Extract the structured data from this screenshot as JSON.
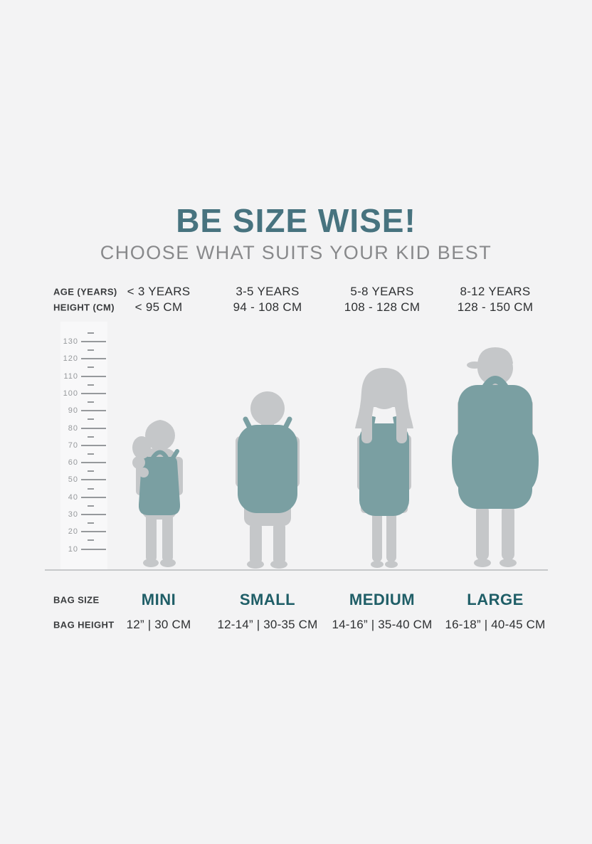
{
  "page": {
    "title": "BE SIZE WISE!",
    "subtitle": "CHOOSE WHAT SUITS YOUR KID BEST"
  },
  "colors": {
    "background": "#f3f3f4",
    "title_teal": "#47737f",
    "bag_label_teal": "#1f5e67",
    "backpack_teal": "#7a9fa2",
    "silhouette_gray": "#c5c7c9",
    "text_dark": "#2e3032",
    "muted_gray": "#88898b"
  },
  "size_table": {
    "age_label": "AGE (YEARS)",
    "height_label": "HEIGHT (CM)",
    "bag_size_label": "BAG SIZE",
    "bag_height_label": "BAG HEIGHT",
    "columns": [
      {
        "age": "< 3 YEARS",
        "height": "< 95 CM",
        "bag_size": "MINI",
        "bag_height": "12” | 30 CM",
        "figure": "toddler-girl-with-mini-backpack"
      },
      {
        "age": "3-5 YEARS",
        "height": "94 - 108 CM",
        "bag_size": "SMALL",
        "bag_height": "12-14” | 30-35 CM",
        "figure": "boy-with-small-backpack"
      },
      {
        "age": "5-8 YEARS",
        "height": "108 - 128 CM",
        "bag_size": "MEDIUM",
        "bag_height": "14-16” | 35-40 CM",
        "figure": "girl-with-medium-eared-backpack"
      },
      {
        "age": "8-12 YEARS",
        "height": "128 - 150 CM",
        "bag_size": "LARGE",
        "bag_height": "16-18” | 40-45 CM",
        "figure": "boy-with-cap-and-large-backpack"
      }
    ]
  },
  "ruler": {
    "unit": "cm",
    "major_labels": [
      "130",
      "120",
      "110",
      "100",
      "90",
      "80",
      "70",
      "60",
      "50",
      "40",
      "30",
      "20",
      "10"
    ]
  }
}
